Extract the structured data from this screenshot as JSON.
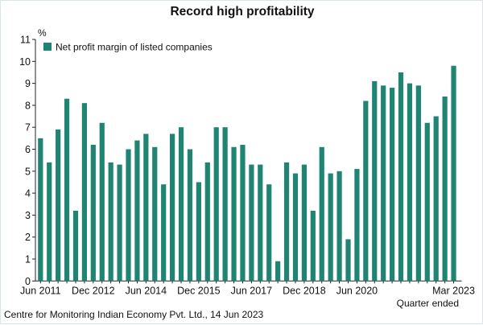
{
  "chart_data": {
    "type": "bar",
    "title": "Record high profitability",
    "ylabel": "%",
    "xlabel": "Quarter ended",
    "ylim": [
      0,
      11
    ],
    "yticks": [
      0,
      1,
      2,
      3,
      4,
      5,
      6,
      7,
      8,
      9,
      10,
      11
    ],
    "grid": false,
    "legend_position": "top-left",
    "color": "#1f8472",
    "series": [
      {
        "name": "Net profit margin of listed companies",
        "values": [
          6.5,
          5.4,
          6.9,
          8.3,
          3.2,
          8.1,
          6.2,
          7.2,
          5.4,
          5.3,
          6.0,
          6.4,
          6.7,
          6.1,
          4.4,
          6.7,
          7.0,
          6.0,
          4.5,
          5.4,
          7.0,
          7.0,
          6.1,
          6.2,
          5.3,
          5.3,
          4.4,
          0.9,
          5.4,
          4.9,
          5.3,
          3.2,
          6.1,
          4.9,
          5.0,
          1.9,
          5.1,
          8.2,
          9.1,
          8.9,
          8.8,
          9.5,
          9.0,
          8.9,
          7.2,
          7.5,
          8.4,
          9.8
        ]
      }
    ],
    "categories": [
      "Jun 2011",
      "Sep 2011",
      "Dec 2011",
      "Mar 2012",
      "Jun 2012",
      "Sep 2012",
      "Dec 2012",
      "Mar 2013",
      "Jun 2013",
      "Sep 2013",
      "Dec 2013",
      "Mar 2014",
      "Jun 2014",
      "Sep 2014",
      "Dec 2014",
      "Mar 2015",
      "Jun 2015",
      "Sep 2015",
      "Dec 2015",
      "Mar 2016",
      "Jun 2016",
      "Sep 2016",
      "Dec 2016",
      "Mar 2017",
      "Jun 2017",
      "Sep 2017",
      "Dec 2017",
      "Mar 2018",
      "Jun 2018",
      "Sep 2018",
      "Dec 2018",
      "Mar 2019",
      "Jun 2019",
      "Sep 2019",
      "Dec 2019",
      "Mar 2020",
      "Jun 2020",
      "Sep 2020",
      "Dec 2020",
      "Mar 2021",
      "Jun 2021",
      "Sep 2021",
      "Dec 2021",
      "Mar 2022",
      "Jun 2022",
      "Sep 2022",
      "Dec 2022",
      "Mar 2023"
    ],
    "xtick_labels": [
      {
        "index": 0,
        "label": "Jun 2011"
      },
      {
        "index": 6,
        "label": "Dec 2012"
      },
      {
        "index": 12,
        "label": "Jun 2014"
      },
      {
        "index": 18,
        "label": "Dec 2015"
      },
      {
        "index": 24,
        "label": "Jun 2017"
      },
      {
        "index": 30,
        "label": "Dec 2018"
      },
      {
        "index": 36,
        "label": "Jun 2020"
      },
      {
        "index": 47,
        "label": "Mar 2023"
      }
    ]
  },
  "source": "Centre for Monitoring Indian Economy Pvt. Ltd., 14 Jun 2023"
}
